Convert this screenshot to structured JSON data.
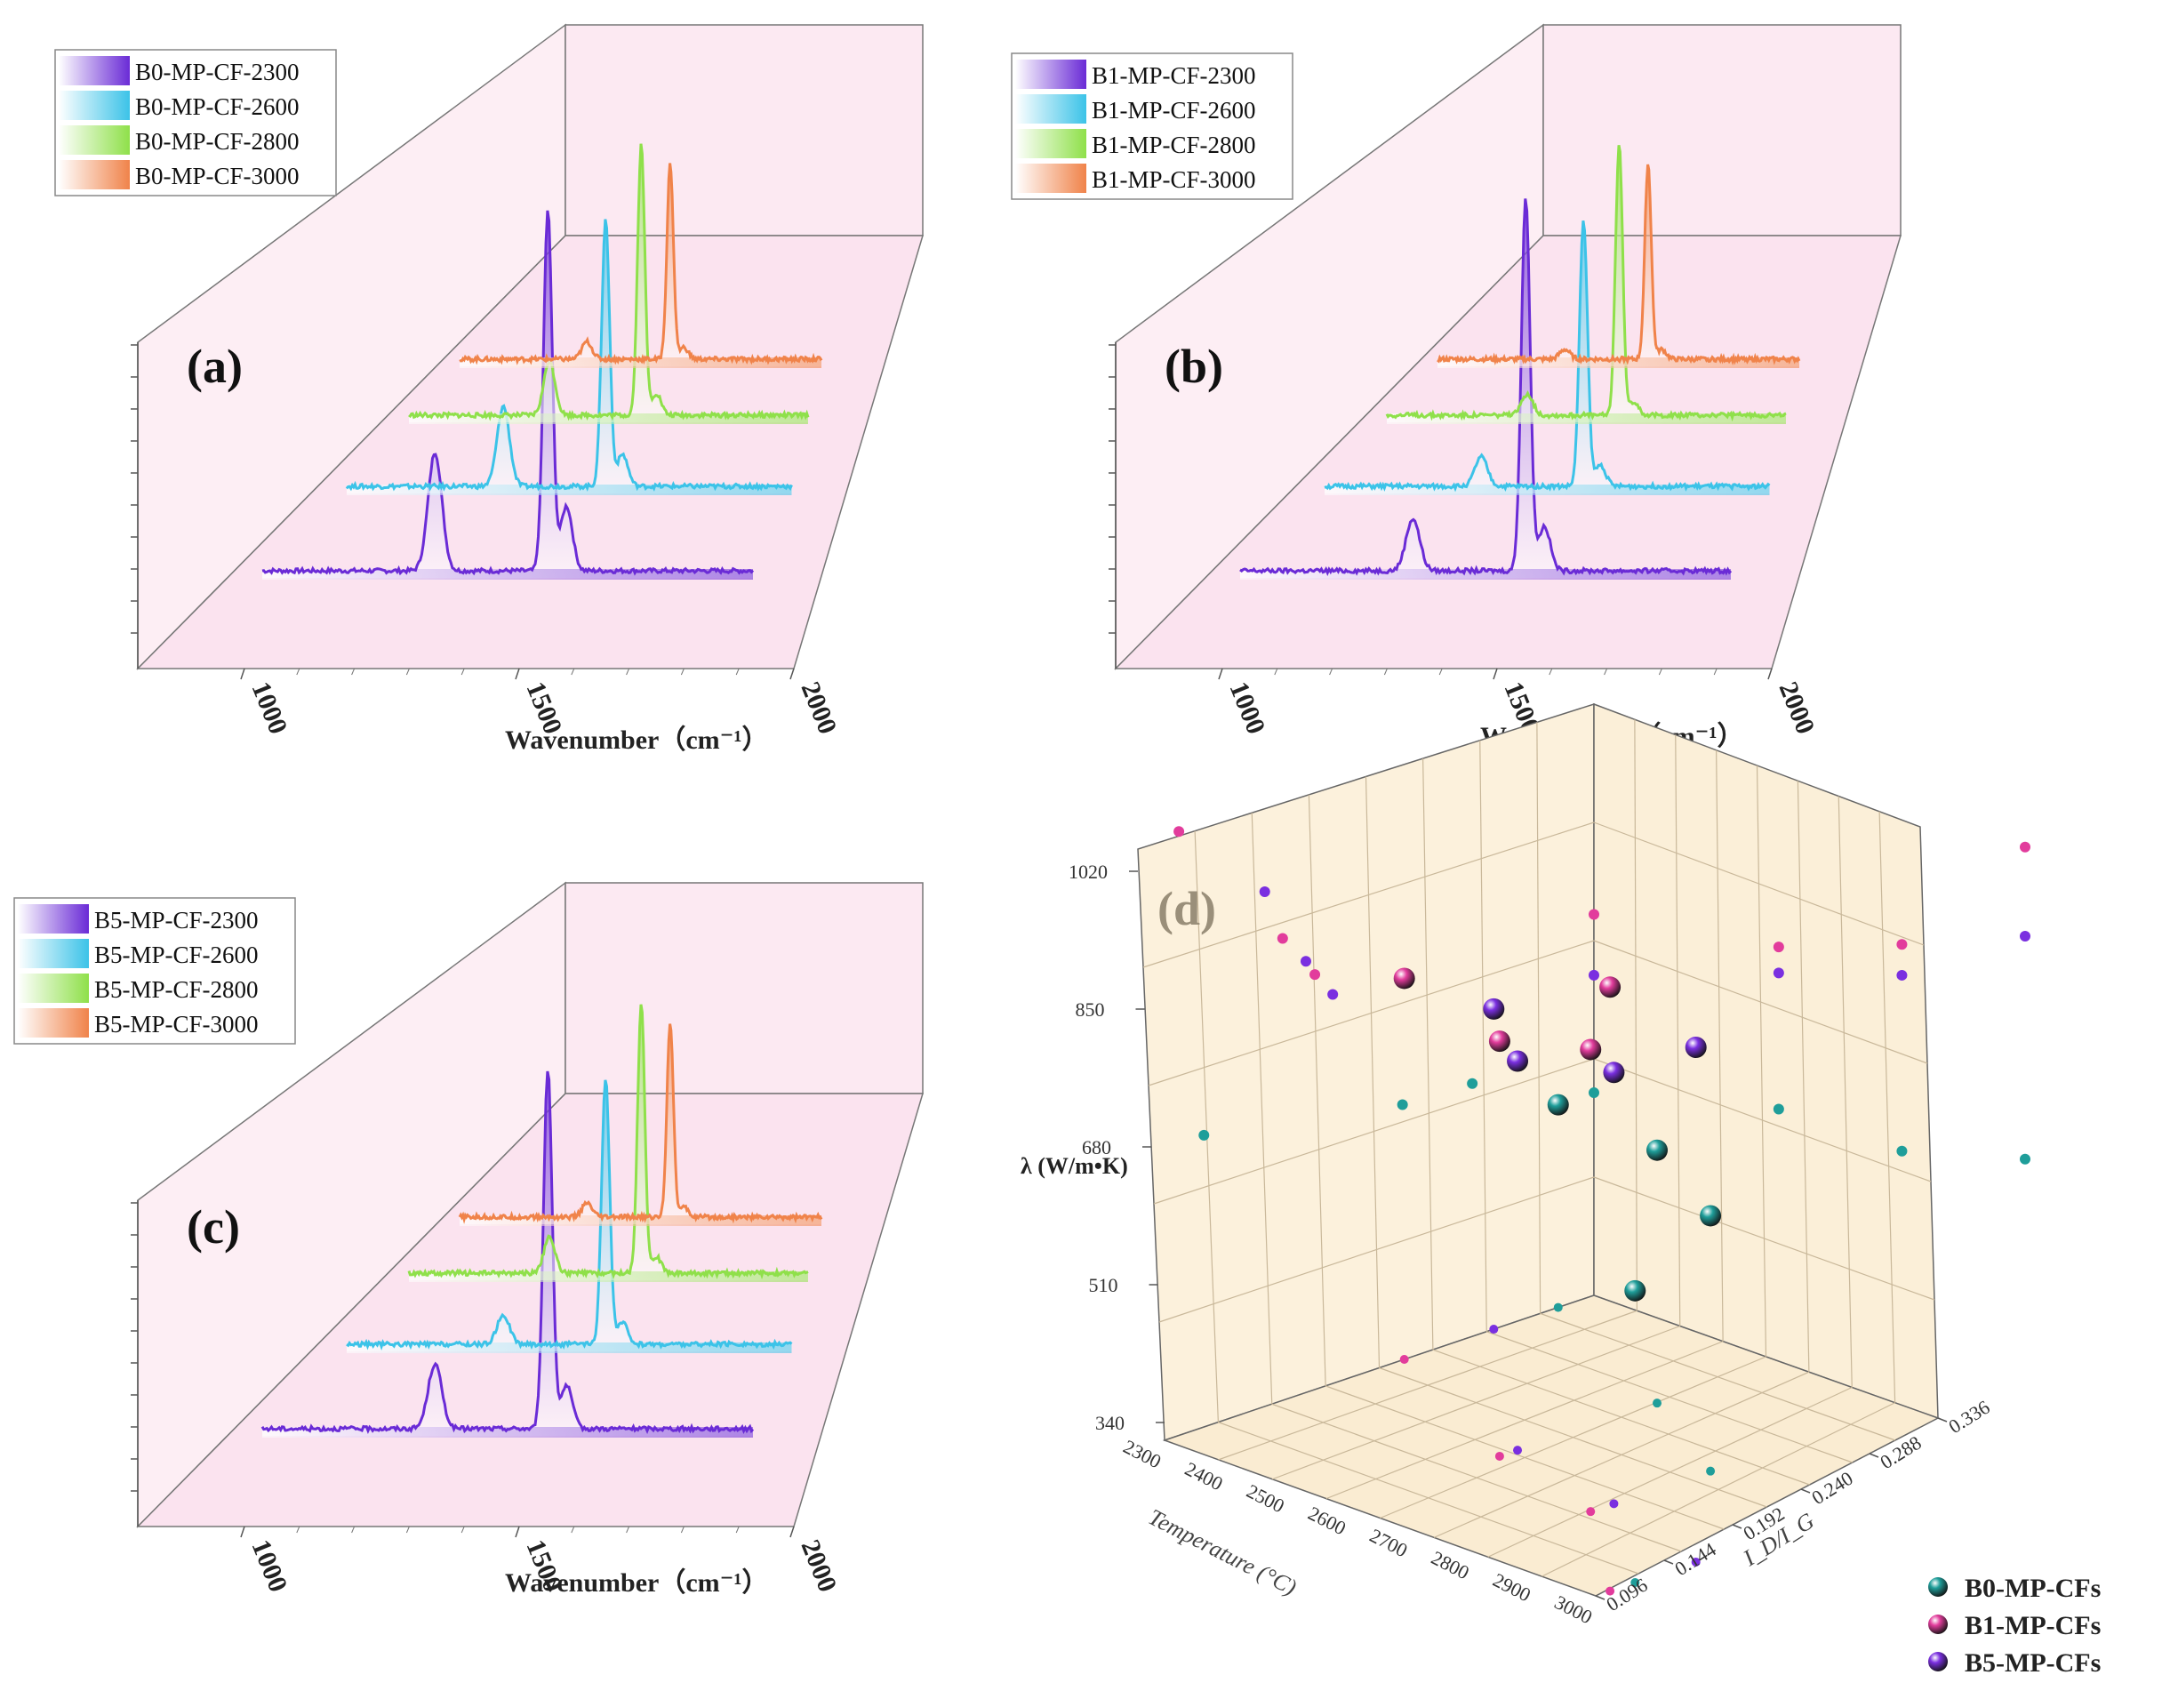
{
  "spectra_panels": [
    {
      "letter": "(a)",
      "xlabel": "Wavenumber（cm⁻¹）",
      "x_ticks": [
        "1000",
        "1500",
        "2000"
      ],
      "legend": [
        "B0-MP-CF-2300",
        "B0-MP-CF-2600",
        "B0-MP-CF-2800",
        "B0-MP-CF-3000"
      ]
    },
    {
      "letter": "(b)",
      "xlabel": "Wavenumber（cm⁻¹）",
      "x_ticks": [
        "1000",
        "1500",
        "2000"
      ],
      "legend": [
        "B1-MP-CF-2300",
        "B1-MP-CF-2600",
        "B1-MP-CF-2800",
        "B1-MP-CF-3000"
      ]
    },
    {
      "letter": "(c)",
      "xlabel": "Wavenumber（cm⁻¹）",
      "x_ticks": [
        "1000",
        "1500",
        "2000"
      ],
      "legend": [
        "B5-MP-CF-2300",
        "B5-MP-CF-2600",
        "B5-MP-CF-2800",
        "B5-MP-CF-3000"
      ]
    }
  ],
  "scatter_panel": {
    "letter": "(d)",
    "zlabel": "λ (W/m•K)",
    "xlabel": "Temperature (°C)",
    "ylabel": "I_D/I_G",
    "z_ticks": [
      "1020",
      "850",
      "680",
      "510",
      "340"
    ],
    "x_ticks": [
      "2300",
      "2400",
      "2500",
      "2600",
      "2700",
      "2800",
      "2900",
      "3000"
    ],
    "y_ticks": [
      "0.096",
      "0.144",
      "0.192",
      "0.240",
      "0.288",
      "0.336"
    ],
    "legend": [
      "B0-MP-CFs",
      "B1-MP-CFs",
      "B5-MP-CFs"
    ]
  },
  "chart_data": [
    {
      "type": "line",
      "panel": "a",
      "xlabel": "Wavenumber (cm-1)",
      "xlim": [
        1000,
        2000
      ],
      "series": [
        {
          "name": "B0-MP-CF-2300",
          "color": "#6a2bd6",
          "D_pos": 1352,
          "D_height": 0.33,
          "G_pos": 1582,
          "G_height": 1.0,
          "D2_pos": 1620,
          "D2_height": 0.18
        },
        {
          "name": "B0-MP-CF-2600",
          "color": "#3cc3e8",
          "D_pos": 1352,
          "D_height": 0.3,
          "G_pos": 1582,
          "G_height": 1.0,
          "D2_pos": 1620,
          "D2_height": 0.12
        },
        {
          "name": "B0-MP-CF-2800",
          "color": "#8fe04a",
          "D_pos": 1352,
          "D_height": 0.2,
          "G_pos": 1582,
          "G_height": 1.0,
          "D2_pos": 1620,
          "D2_height": 0.08
        },
        {
          "name": "B0-MP-CF-3000",
          "color": "#f0834a",
          "D_pos": 1352,
          "D_height": 0.09,
          "G_pos": 1582,
          "G_height": 1.0,
          "D2_pos": 1620,
          "D2_height": 0.06
        }
      ]
    },
    {
      "type": "line",
      "panel": "b",
      "xlabel": "Wavenumber (cm-1)",
      "xlim": [
        1000,
        2000
      ],
      "series": [
        {
          "name": "B1-MP-CF-2300",
          "color": "#6a2bd6",
          "D_pos": 1352,
          "D_height": 0.14,
          "G_pos": 1582,
          "G_height": 1.0,
          "D2_pos": 1620,
          "D2_height": 0.12
        },
        {
          "name": "B1-MP-CF-2600",
          "color": "#3cc3e8",
          "D_pos": 1352,
          "D_height": 0.11,
          "G_pos": 1582,
          "G_height": 1.0,
          "D2_pos": 1620,
          "D2_height": 0.08
        },
        {
          "name": "B1-MP-CF-2800",
          "color": "#8fe04a",
          "D_pos": 1352,
          "D_height": 0.08,
          "G_pos": 1582,
          "G_height": 1.0,
          "D2_pos": 1620,
          "D2_height": 0.05
        },
        {
          "name": "B1-MP-CF-3000",
          "color": "#f0834a",
          "D_pos": 1352,
          "D_height": 0.05,
          "G_pos": 1582,
          "G_height": 1.0,
          "D2_pos": 1620,
          "D2_height": 0.05
        }
      ]
    },
    {
      "type": "line",
      "panel": "c",
      "xlabel": "Wavenumber (cm-1)",
      "xlim": [
        1000,
        2000
      ],
      "series": [
        {
          "name": "B5-MP-CF-2300",
          "color": "#6a2bd6",
          "D_pos": 1352,
          "D_height": 0.18,
          "G_pos": 1582,
          "G_height": 1.0,
          "D2_pos": 1620,
          "D2_height": 0.12
        },
        {
          "name": "B5-MP-CF-2600",
          "color": "#3cc3e8",
          "D_pos": 1352,
          "D_height": 0.11,
          "G_pos": 1582,
          "G_height": 1.0,
          "D2_pos": 1620,
          "D2_height": 0.08
        },
        {
          "name": "B5-MP-CF-2800",
          "color": "#8fe04a",
          "D_pos": 1352,
          "D_height": 0.13,
          "G_pos": 1582,
          "G_height": 1.0,
          "D2_pos": 1620,
          "D2_height": 0.06
        },
        {
          "name": "B5-MP-CF-3000",
          "color": "#f0834a",
          "D_pos": 1352,
          "D_height": 0.07,
          "G_pos": 1582,
          "G_height": 1.0,
          "D2_pos": 1620,
          "D2_height": 0.05
        }
      ]
    },
    {
      "type": "scatter",
      "panel": "d",
      "xlabel": "Temperature (°C)",
      "ylabel": "I_D/I_G",
      "zlabel": "λ (W/m•K)",
      "xlim": [
        2300,
        3000
      ],
      "ylim": [
        0.096,
        0.336
      ],
      "zlim": [
        340,
        1020
      ],
      "series": [
        {
          "name": "B0-MP-CFs",
          "color": "#1f9e9a",
          "points": [
            {
              "T": 2300,
              "R": 0.316,
              "k": 590
            },
            {
              "T": 2600,
              "R": 0.268,
              "k": 652
            },
            {
              "T": 2800,
              "R": 0.229,
              "k": 655
            },
            {
              "T": 3000,
              "R": 0.118,
              "k": 700
            }
          ]
        },
        {
          "name": "B1-MP-CFs",
          "color": "#e23c9c",
          "points": [
            {
              "T": 2300,
              "R": 0.23,
              "k": 810
            },
            {
              "T": 2600,
              "R": 0.18,
              "k": 852
            },
            {
              "T": 2800,
              "R": 0.162,
              "k": 910
            },
            {
              "T": 3000,
              "R": 0.104,
              "k": 1085
            }
          ]
        },
        {
          "name": "B5-MP-CFs",
          "color": "#7a2fe0",
          "points": [
            {
              "T": 2300,
              "R": 0.28,
              "k": 735
            },
            {
              "T": 2600,
              "R": 0.19,
              "k": 820
            },
            {
              "T": 2800,
              "R": 0.175,
              "k": 872
            },
            {
              "T": 3000,
              "R": 0.152,
              "k": 975
            }
          ]
        }
      ]
    }
  ]
}
